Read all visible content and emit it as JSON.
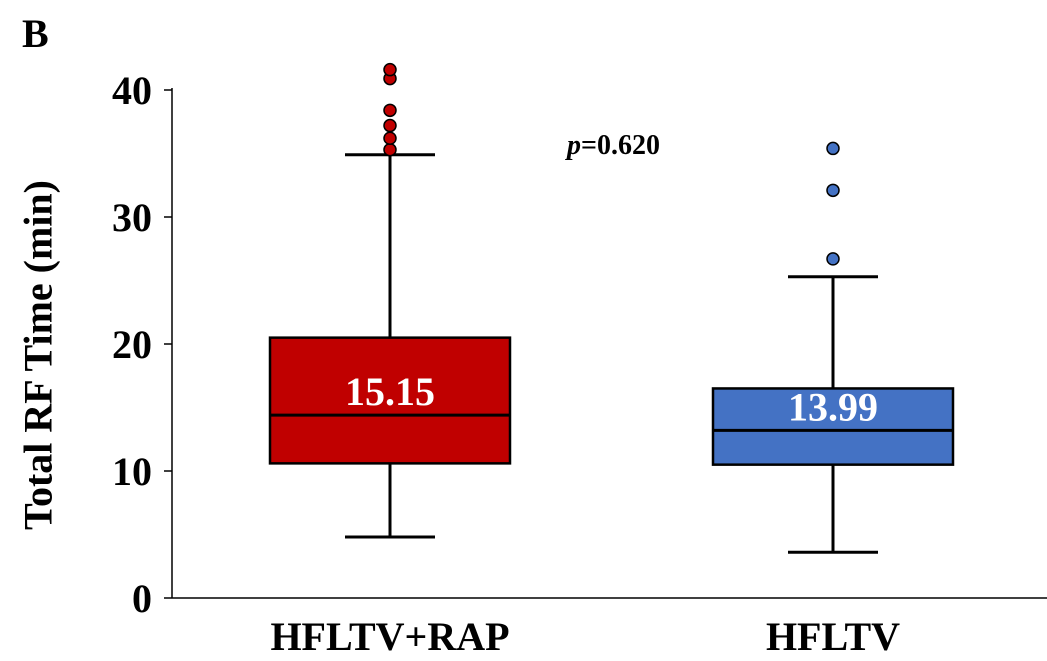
{
  "panel_label": "B",
  "chart_data": {
    "type": "box",
    "ylabel": "Total RF Time (min)",
    "ylim": [
      0,
      40
    ],
    "yticks": [
      0,
      10,
      20,
      30,
      40
    ],
    "categories": [
      "HFLTV+RAP",
      "HFLTV"
    ],
    "annotation": {
      "prefix": "p",
      "text": "=0.620"
    },
    "boxes": [
      {
        "name": "HFLTV+RAP",
        "label": "15.15",
        "min": 4.8,
        "q1": 10.6,
        "median": 14.4,
        "q3": 20.5,
        "max": 34.9,
        "outliers": [
          35.3,
          36.2,
          37.2,
          38.4,
          40.9,
          41.6
        ],
        "color": "#C00000"
      },
      {
        "name": "HFLTV",
        "label": "13.99",
        "min": 3.6,
        "q1": 10.5,
        "median": 13.2,
        "q3": 16.5,
        "max": 25.3,
        "outliers": [
          26.7,
          32.1,
          35.4
        ],
        "color": "#4472C4"
      }
    ]
  }
}
